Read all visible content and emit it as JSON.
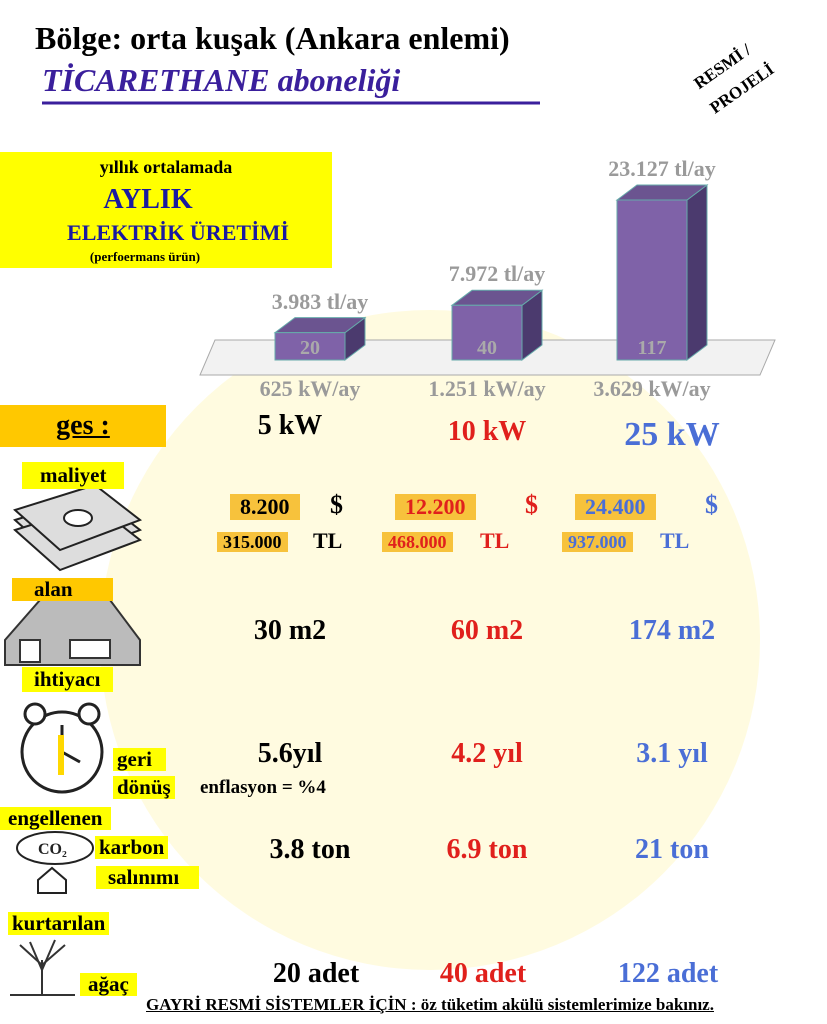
{
  "header": {
    "title": "Bölge: orta kuşak (Ankara enlemi)",
    "subtitle": "TİCARETHANE  aboneliği",
    "stamp": [
      "RESMİ /",
      "PROJELİ"
    ]
  },
  "production_box": {
    "line1": "yıllık ortalamada",
    "line2": "AYLIK",
    "line3": "ELEKTRİK ÜRETİMİ",
    "line4": "(perfoermans ürün)"
  },
  "chart_data": {
    "type": "bar",
    "categories": [
      "625 kW/ay",
      "1.251 kW/ay",
      "3.629 kW/ay"
    ],
    "values": [
      20,
      40,
      117
    ],
    "annotations": [
      "3.983 tl/ay",
      "7.972 tl/ay",
      "23.127 tl/ay"
    ],
    "color": "#7f62a8"
  },
  "rows": {
    "ges": {
      "label": "ges :",
      "values": [
        "5 kW",
        "10 kW",
        "25 kW"
      ]
    },
    "maliyet": {
      "label": "maliyet",
      "usd": [
        "8.200",
        "12.200",
        "24.400"
      ],
      "usd_unit": "$",
      "tl": [
        "315.000",
        "468.000",
        "937.000"
      ],
      "tl_unit": "TL"
    },
    "alan": {
      "label": [
        "alan",
        "ihtiyacı"
      ],
      "values": [
        "30 m2",
        "60 m2",
        "174 m2"
      ]
    },
    "geri_donus": {
      "label": [
        "geri",
        "dönüş"
      ],
      "note": "enflasyon = %4",
      "values": [
        "5.6yıl",
        "4.2 yıl",
        "3.1 yıl"
      ]
    },
    "karbon": {
      "label": [
        "engellenen",
        "karbon",
        "salınımı"
      ],
      "values": [
        "3.8 ton",
        "6.9 ton",
        "21 ton"
      ]
    },
    "agac": {
      "label": [
        "kurtarılan",
        "ağaç"
      ],
      "values": [
        "20 adet",
        "40 adet",
        "122 adet"
      ]
    }
  },
  "footer": "GAYRİ RESMİ SİSTEMLER İÇİN : öz tüketim akülü sistemlerimize bakınız."
}
